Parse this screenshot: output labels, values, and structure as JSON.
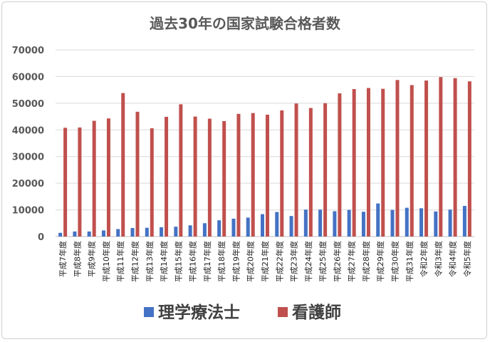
{
  "chart_data": {
    "type": "bar",
    "title": "過去30年の国家試験合格者数",
    "categories": [
      "平成7年度",
      "平成8年度",
      "平成9年度",
      "平成10年度",
      "平成11年度",
      "平成12年度",
      "平成13年度",
      "平成14年度",
      "平成15年度",
      "平成16年度",
      "平成17年度",
      "平成18年度",
      "平成19年度",
      "平成20年度",
      "平成21年度",
      "平成22年度",
      "平成23年度",
      "平成24年度",
      "平成25年度",
      "平成26年度",
      "平成27年度",
      "平成28年度",
      "平成29年度",
      "平成30年度",
      "平成31年度",
      "令和2年度",
      "令和3年度",
      "令和4年度",
      "令和5年度"
    ],
    "series": [
      {
        "name": "理学療法士",
        "color": "#4472C4",
        "values": [
          1400,
          1900,
          1900,
          2300,
          2800,
          3200,
          3300,
          3500,
          3700,
          4200,
          5000,
          6100,
          6700,
          7100,
          8400,
          9200,
          7700,
          10100,
          10100,
          9500,
          10000,
          9300,
          12400,
          10000,
          10800,
          10600,
          9400,
          10100,
          11500
        ]
      },
      {
        "name": "看護師",
        "color": "#C0504D",
        "values": [
          40800,
          40900,
          43400,
          44300,
          53800,
          46800,
          40600,
          44900,
          49600,
          45000,
          44200,
          43300,
          46000,
          46300,
          45700,
          47300,
          49900,
          48200,
          50000,
          53700,
          55300,
          55700,
          55400,
          58700,
          56800,
          58500,
          59800,
          59400,
          58200
        ]
      }
    ],
    "ylim": [
      0,
      70000
    ],
    "yticks": [
      "0",
      "10000",
      "20000",
      "30000",
      "40000",
      "50000",
      "60000",
      "70000"
    ],
    "xlabel": "",
    "ylabel": "",
    "grid": true,
    "legend_position": "bottom"
  }
}
